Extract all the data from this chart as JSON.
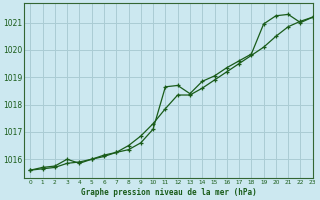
{
  "title": "Graphe pression niveau de la mer (hPa)",
  "background_color": "#cce8f0",
  "grid_color": "#aaccd4",
  "line_color": "#1a5c1a",
  "spine_color": "#336633",
  "xlim": [
    -0.5,
    23
  ],
  "ylim": [
    1015.3,
    1021.7
  ],
  "yticks": [
    1016,
    1017,
    1018,
    1019,
    1020,
    1021
  ],
  "xticks": [
    0,
    1,
    2,
    3,
    4,
    5,
    6,
    7,
    8,
    9,
    10,
    11,
    12,
    13,
    14,
    15,
    16,
    17,
    18,
    19,
    20,
    21,
    22,
    23
  ],
  "series1_x": [
    0,
    1,
    2,
    3,
    4,
    5,
    6,
    7,
    8,
    9,
    10,
    11,
    12,
    13,
    14,
    15,
    16,
    17,
    18,
    19,
    20,
    21,
    22,
    23
  ],
  "series1_y": [
    1015.6,
    1015.7,
    1015.75,
    1016.0,
    1015.85,
    1016.0,
    1016.15,
    1016.25,
    1016.35,
    1016.6,
    1017.1,
    1018.65,
    1018.7,
    1018.4,
    1018.85,
    1019.05,
    1019.35,
    1019.6,
    1019.85,
    1020.95,
    1021.25,
    1021.3,
    1021.0,
    1021.2
  ],
  "series2_x": [
    0,
    1,
    2,
    3,
    4,
    5,
    6,
    7,
    8,
    9,
    10,
    11,
    12,
    13,
    14,
    15,
    16,
    17,
    18,
    19,
    20,
    21,
    22,
    23
  ],
  "series2_y": [
    1015.6,
    1015.65,
    1015.7,
    1015.85,
    1015.9,
    1016.0,
    1016.1,
    1016.25,
    1016.5,
    1016.85,
    1017.3,
    1017.85,
    1018.35,
    1018.35,
    1018.6,
    1018.9,
    1019.2,
    1019.5,
    1019.8,
    1020.1,
    1020.5,
    1020.85,
    1021.05,
    1021.2
  ]
}
